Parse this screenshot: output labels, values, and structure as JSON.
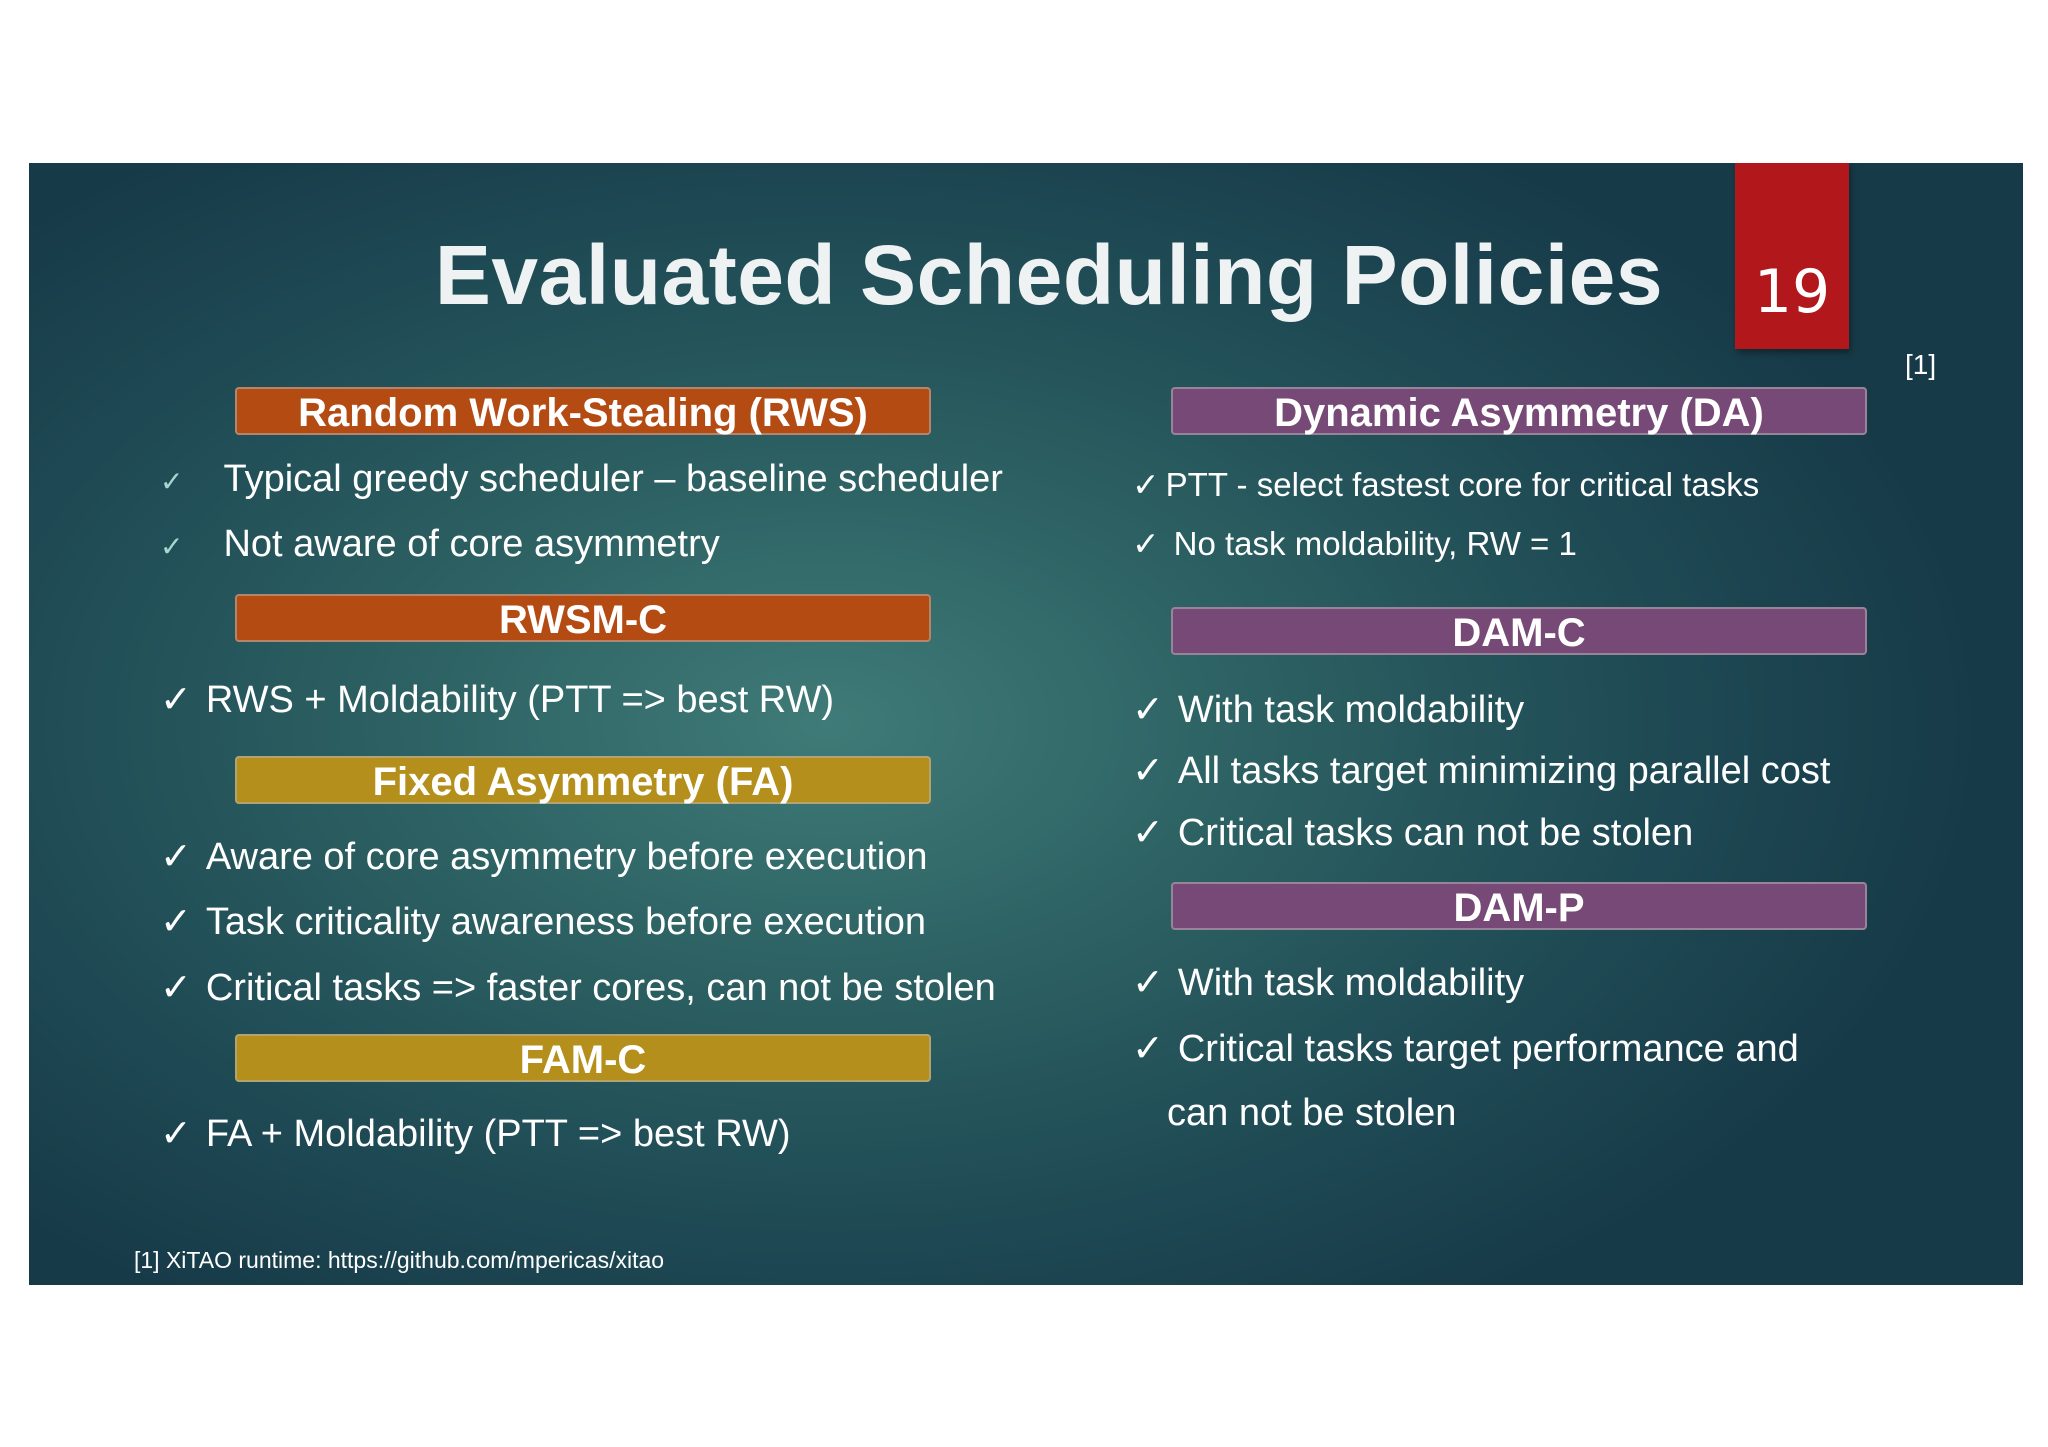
{
  "slide": {
    "title": "Evaluated Scheduling Policies",
    "page_number": "19",
    "reference_mark": "[1]",
    "footnote": "[1] XiTAO runtime: https://github.com/mpericas/xitao"
  },
  "colors": {
    "background_dark": "#173a48",
    "background_light": "#3f7b78",
    "page_number_box": "#b1171b",
    "header_orange": "#b34b12",
    "header_gold": "#b58f1b",
    "header_purple": "#774976"
  },
  "check_icon": "✓",
  "left": {
    "rws": {
      "header": "Random Work-Stealing (RWS)",
      "bullets": [
        "Typical greedy scheduler – baseline scheduler",
        "Not aware of core asymmetry"
      ]
    },
    "rwsm_c": {
      "header": "RWSM-C",
      "bullets": [
        "RWS + Moldability (PTT => best RW)"
      ]
    },
    "fa": {
      "header": "Fixed Asymmetry (FA)",
      "bullets": [
        "Aware of core asymmetry before execution",
        "Task criticality awareness before execution",
        "Critical tasks => faster cores, can not be stolen"
      ]
    },
    "fam_c": {
      "header": "FAM-C",
      "bullets": [
        "FA + Moldability (PTT => best RW)"
      ]
    }
  },
  "right": {
    "da": {
      "header": "Dynamic Asymmetry (DA)",
      "bullets": [
        "PTT - select fastest core for critical tasks",
        "No task moldability, RW = 1"
      ]
    },
    "dam_c": {
      "header": "DAM-C",
      "bullets": [
        "With task moldability",
        "All tasks target minimizing parallel cost",
        "Critical tasks can not be stolen"
      ]
    },
    "dam_p": {
      "header": "DAM-P",
      "bullets": [
        "With task moldability",
        "Critical tasks target performance and",
        "can not be stolen"
      ]
    }
  }
}
